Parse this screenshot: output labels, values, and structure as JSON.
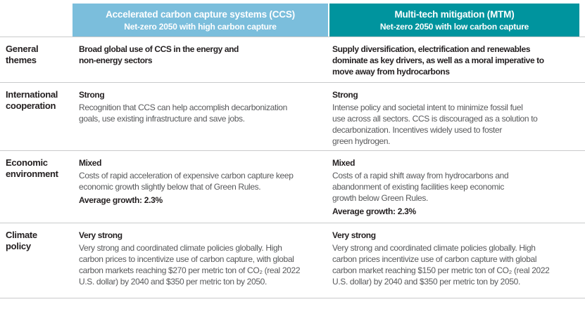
{
  "table": {
    "colors": {
      "ccs_header": "#7BBEDC",
      "mtm_header": "#00949E",
      "divider": "#C9CACB",
      "heading_text": "#231F20",
      "body_text": "#58595B",
      "header_text": "#FFFFFF"
    },
    "columns": [
      {
        "title": "Accelerated carbon capture systems (CCS)",
        "subtitle": "Net-zero 2050 with high carbon capture"
      },
      {
        "title": "Multi-tech mitigation (MTM)",
        "subtitle": "Net-zero 2050 with low carbon capture"
      }
    ],
    "rows": [
      {
        "label": "General\nthemes",
        "ccs": {
          "lead": "Broad global use of CCS in the energy and\nnon-energy sectors"
        },
        "mtm": {
          "lead": "Supply diversification, electrification and renewables\ndominate as key drivers, as well as a moral imperative to\nmove away from hydrocarbons"
        }
      },
      {
        "label": "International\ncooperation",
        "ccs": {
          "lead": "Strong",
          "body": "Recognition that CCS can help accomplish decarbonization\ngoals, use existing infrastructure and save jobs."
        },
        "mtm": {
          "lead": "Strong",
          "body": "Intense policy and societal intent to minimize fossil fuel\nuse across all sectors. CCS is discouraged as a solution to\ndecarbonization. Incentives widely used to foster\ngreen hydrogen."
        }
      },
      {
        "label": "Economic\nenvironment",
        "ccs": {
          "lead": "Mixed",
          "body": "Costs of rapid acceleration of expensive carbon capture keep\neconomic growth slightly below that of Green Rules.",
          "growth": "Average growth: 2.3%"
        },
        "mtm": {
          "lead": "Mixed",
          "body": "Costs of a rapid shift away from hydrocarbons and\nabandonment of existing facilities keep economic\ngrowth below Green Rules.",
          "growth": "Average growth: 2.3%"
        }
      },
      {
        "label": "Climate\npolicy",
        "ccs": {
          "lead": "Very strong",
          "body": "Very strong and coordinated climate policies globally. High\ncarbon prices to incentivize use of carbon capture, with global\ncarbon markets reaching $270 per metric ton of CO₂ (real 2022\nU.S. dollar) by 2040 and $350 per metric ton by 2050."
        },
        "mtm": {
          "lead": "Very strong",
          "body": "Very strong and coordinated climate policies globally. High\ncarbon prices incentivize use of carbon capture with global\ncarbon market reaching $150 per metric ton of CO₂ (real 2022\nU.S. dollar) by 2040 and $350 per metric ton by 2050."
        }
      }
    ]
  }
}
